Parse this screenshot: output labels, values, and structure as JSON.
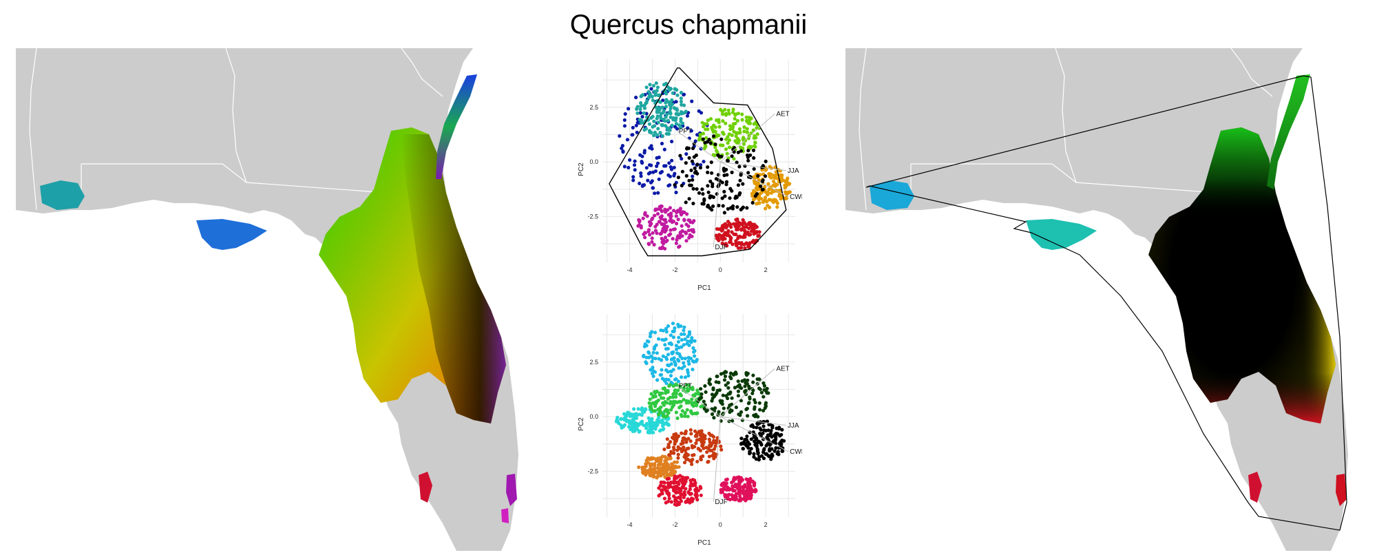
{
  "title": "Quercus chapmanii",
  "colors": {
    "land": "#cccccc",
    "border": "#ffffff",
    "hull": "#000000",
    "grid": "#e6e6e6",
    "vector": "#bbbbbb"
  },
  "chart_data": [
    {
      "type": "scatter",
      "panel": "pca-top",
      "xlabel": "PC1",
      "ylabel": "PC2",
      "xlim": [
        -5.2,
        3.3
      ],
      "ylim": [
        -4.6,
        4.7
      ],
      "xticks": [
        -4,
        -2,
        0,
        2
      ],
      "yticks": [
        2.5,
        0.0,
        -2.5
      ],
      "ytick_labels": [
        "2.5",
        "0.0",
        "-2.5"
      ],
      "grid": true,
      "hull": [
        [
          -1.8,
          4.3
        ],
        [
          -0.3,
          2.7
        ],
        [
          1.2,
          2.6
        ],
        [
          2.3,
          0.6
        ],
        [
          2.9,
          -2.2
        ],
        [
          1.3,
          -4.0
        ],
        [
          -0.8,
          -4.3
        ],
        [
          -3.2,
          -4.3
        ],
        [
          -3.5,
          -3.8
        ],
        [
          -4.9,
          -1.0
        ],
        [
          -1.9,
          4.3
        ]
      ],
      "point_regions": [
        {
          "cx": -2.5,
          "cy": 1.0,
          "rx": 2.0,
          "ry": 2.5,
          "color": "#0b1aa6"
        },
        {
          "cx": -2.6,
          "cy": 2.4,
          "rx": 1.1,
          "ry": 1.3,
          "color": "#1fa7a0"
        },
        {
          "cx": 0.4,
          "cy": 1.3,
          "rx": 1.4,
          "ry": 1.2,
          "color": "#6fd000"
        },
        {
          "cx": 2.2,
          "cy": -1.2,
          "rx": 0.9,
          "ry": 1.0,
          "color": "#e39a00"
        },
        {
          "cx": 0.0,
          "cy": -0.6,
          "rx": 2.2,
          "ry": 1.8,
          "color": "#000000"
        },
        {
          "cx": -2.4,
          "cy": -3.0,
          "rx": 1.3,
          "ry": 1.0,
          "color": "#c01aa0"
        },
        {
          "cx": 0.8,
          "cy": -3.3,
          "rx": 1.0,
          "ry": 0.7,
          "color": "#d0101e"
        }
      ],
      "vectors": [
        {
          "label": "AET",
          "x": 2.4,
          "y": 2.2
        },
        {
          "label": "PPT",
          "x": -1.9,
          "y": 1.4
        },
        {
          "label": "JJA",
          "x": 2.9,
          "y": -0.4
        },
        {
          "label": "CWD",
          "x": 3.0,
          "y": -1.6
        },
        {
          "label": "DJF",
          "x": -0.3,
          "y": -3.9
        }
      ]
    },
    {
      "type": "scatter",
      "panel": "pca-bottom",
      "xlabel": "PC1",
      "ylabel": "PC2",
      "xlim": [
        -5.2,
        3.3
      ],
      "ylim": [
        -4.6,
        4.7
      ],
      "xticks": [
        -4,
        -2,
        0,
        2
      ],
      "yticks": [
        2.5,
        0.0,
        -2.5
      ],
      "ytick_labels": [
        "2.5",
        "0.0",
        "-2.5"
      ],
      "grid": true,
      "point_regions": [
        {
          "cx": -2.2,
          "cy": 2.9,
          "rx": 1.2,
          "ry": 1.4,
          "color": "#1cb8e6"
        },
        {
          "cx": -3.4,
          "cy": -0.2,
          "rx": 1.2,
          "ry": 0.6,
          "color": "#28d8d8"
        },
        {
          "cx": -1.9,
          "cy": 0.7,
          "rx": 1.3,
          "ry": 0.8,
          "color": "#30c840"
        },
        {
          "cx": 0.6,
          "cy": 0.9,
          "rx": 1.6,
          "ry": 1.2,
          "color": "#0a3a08"
        },
        {
          "cx": 1.9,
          "cy": -1.1,
          "rx": 1.0,
          "ry": 0.9,
          "color": "#000000"
        },
        {
          "cx": -1.2,
          "cy": -1.4,
          "rx": 1.3,
          "ry": 0.8,
          "color": "#c83a10"
        },
        {
          "cx": -2.7,
          "cy": -2.3,
          "rx": 0.9,
          "ry": 0.5,
          "color": "#e08020"
        },
        {
          "cx": -1.8,
          "cy": -3.4,
          "rx": 1.0,
          "ry": 0.7,
          "color": "#e01030"
        },
        {
          "cx": 0.8,
          "cy": -3.3,
          "rx": 0.8,
          "ry": 0.6,
          "color": "#e0105a"
        }
      ],
      "vectors": [
        {
          "label": "AET",
          "x": 2.4,
          "y": 2.2
        },
        {
          "label": "PPT",
          "x": -1.9,
          "y": 1.4
        },
        {
          "label": "JJA",
          "x": 2.9,
          "y": -0.4
        },
        {
          "label": "CWD",
          "x": 3.0,
          "y": -1.6
        },
        {
          "label": "DJF",
          "x": -0.3,
          "y": -3.9
        }
      ]
    }
  ]
}
